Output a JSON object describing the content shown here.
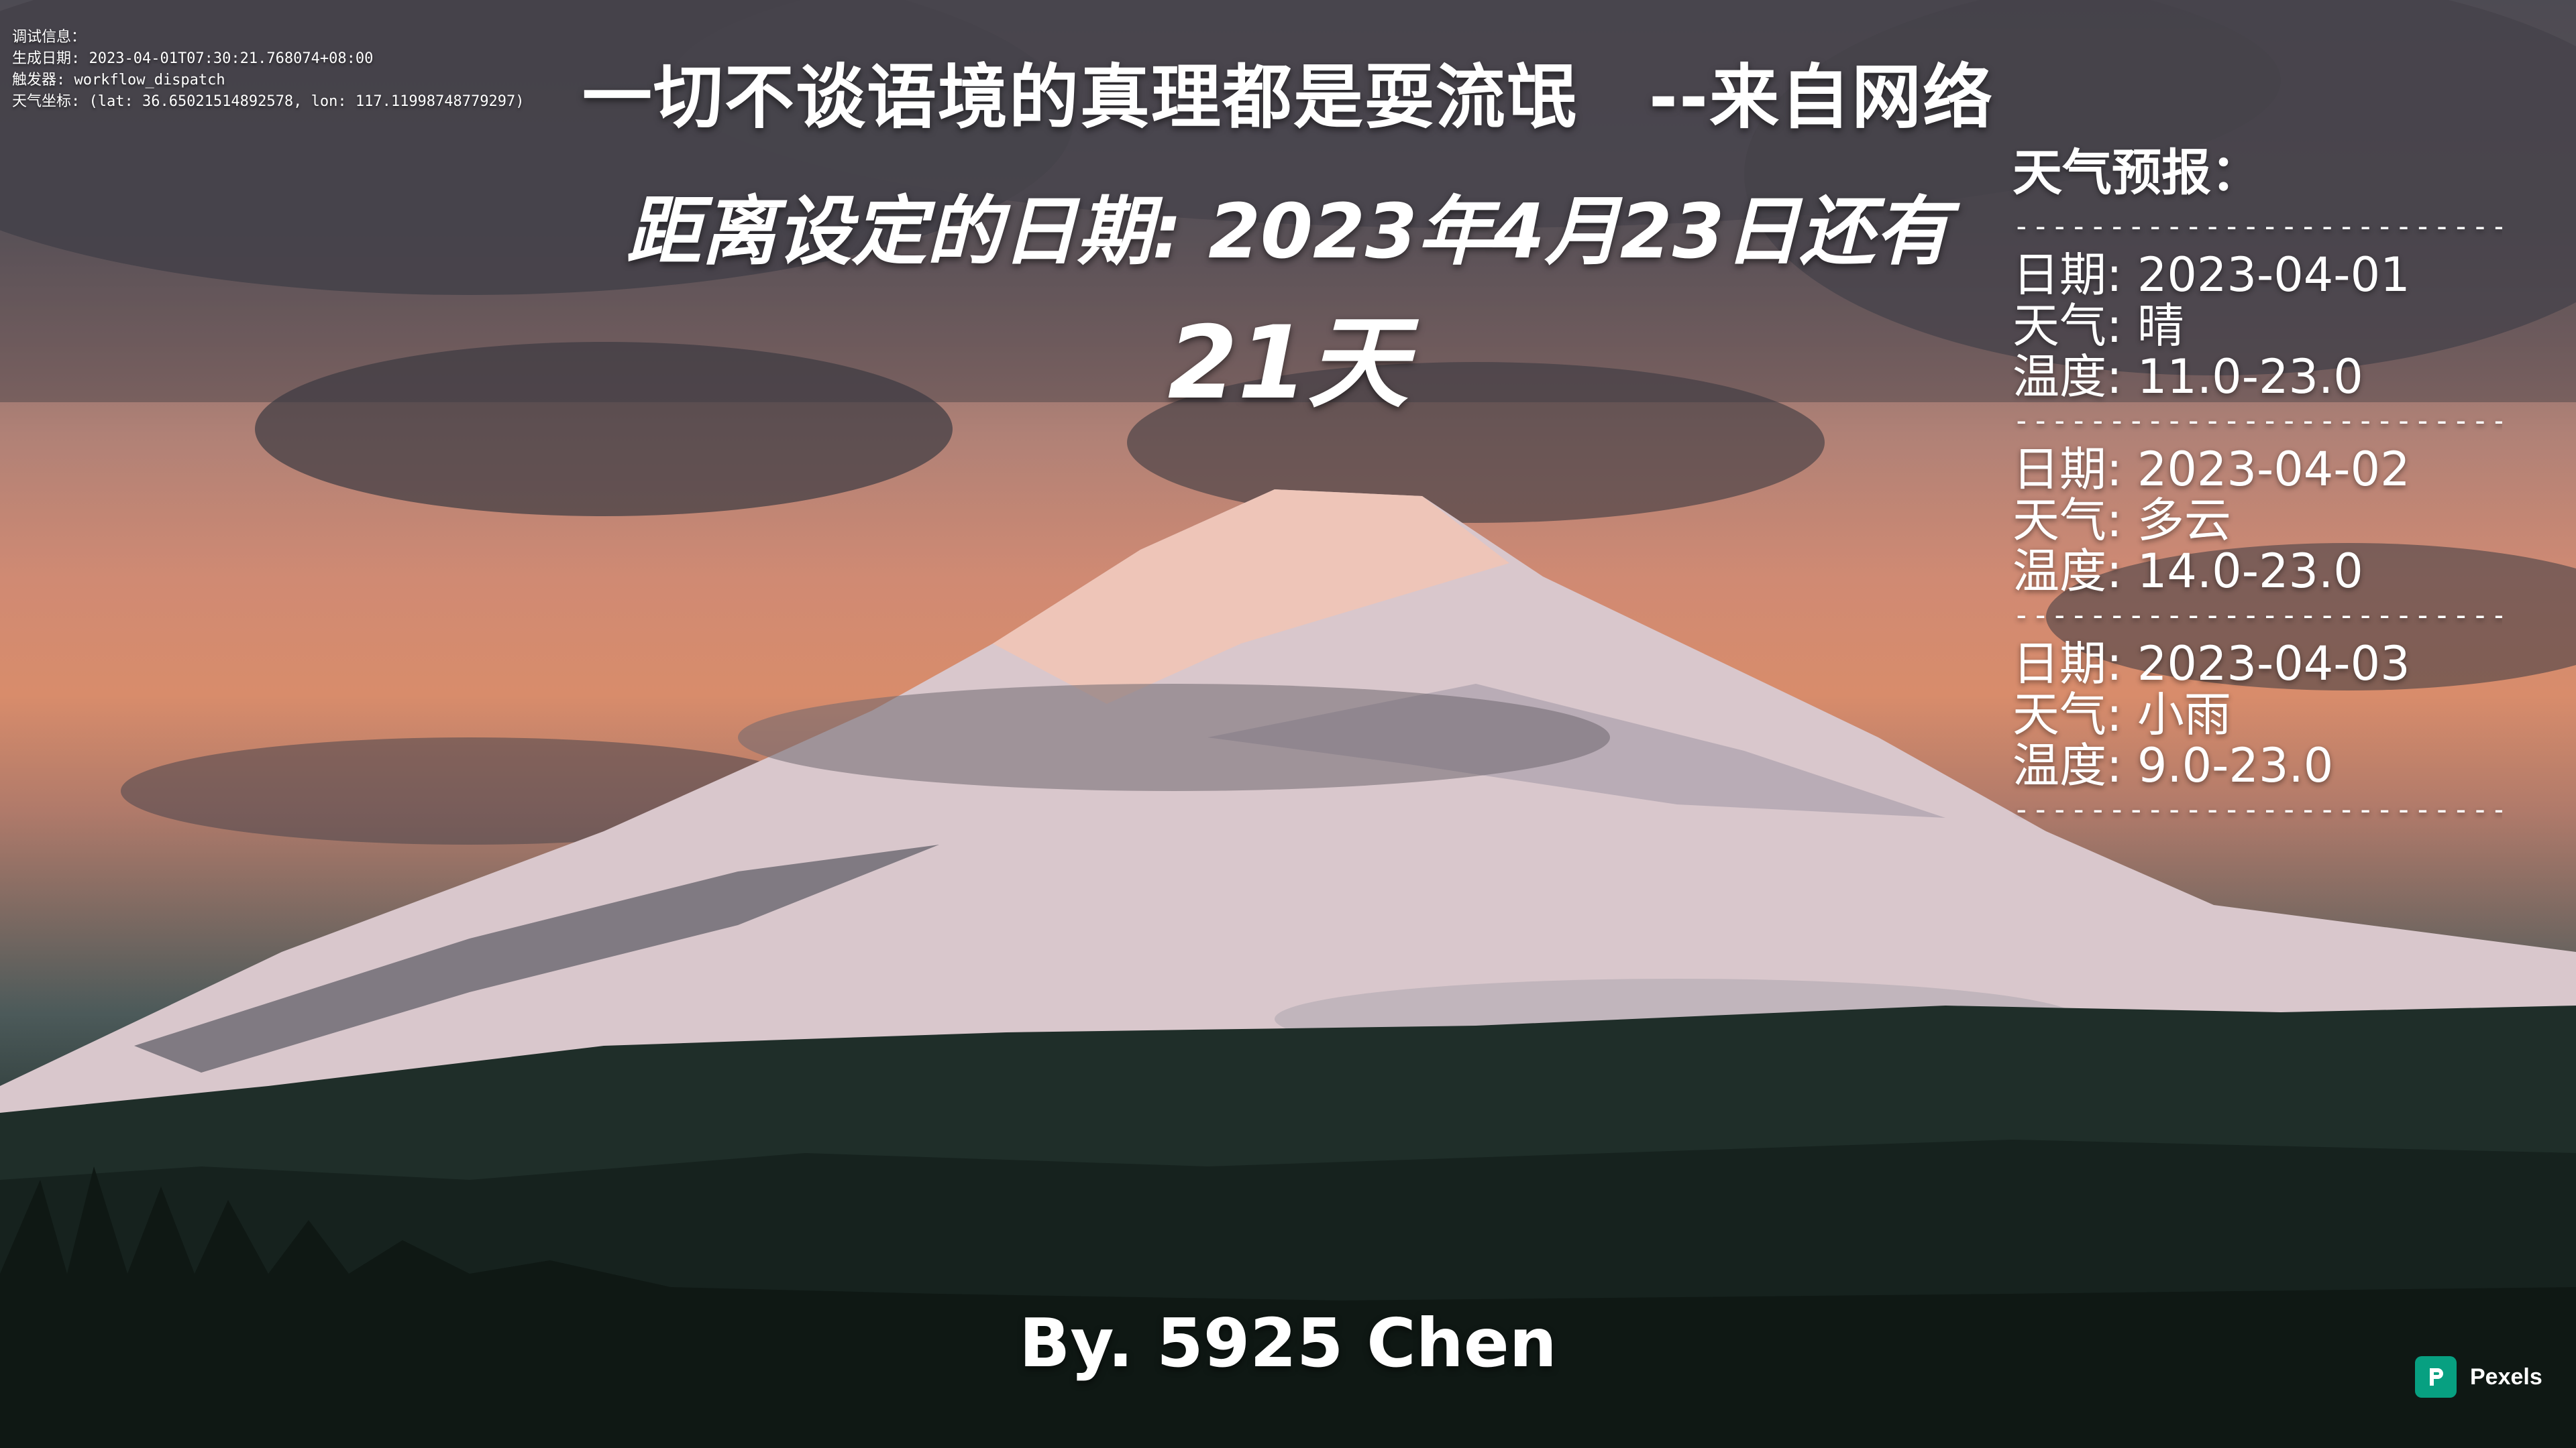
{
  "debug": {
    "title": "调试信息：",
    "generated": "生成日期: 2023-04-01T07:30:21.768074+08:00",
    "trigger": "触发器: workflow_dispatch",
    "coords": "天气坐标: (lat: 36.65021514892578, lon: 117.11998748779297)"
  },
  "quote": "一切不谈语境的真理都是耍流氓　--来自网络",
  "countdown": {
    "text": "距离设定的日期: 2023年4月23日还有",
    "days": "21天"
  },
  "weather": {
    "title": "天气预报：",
    "separator": "------------------------------",
    "days": [
      {
        "date": "日期: 2023-04-01",
        "condition": "天气: 晴",
        "temp": "温度: 11.0-23.0"
      },
      {
        "date": "日期: 2023-04-02",
        "condition": "天气: 多云",
        "temp": "温度: 14.0-23.0"
      },
      {
        "date": "日期: 2023-04-03",
        "condition": "天气: 小雨",
        "temp": "温度: 9.0-23.0"
      }
    ]
  },
  "author": "By. 5925 Chen",
  "watermark": {
    "label": "Pexels",
    "color": "#07a081",
    "icon": "pexels-logo-icon"
  }
}
